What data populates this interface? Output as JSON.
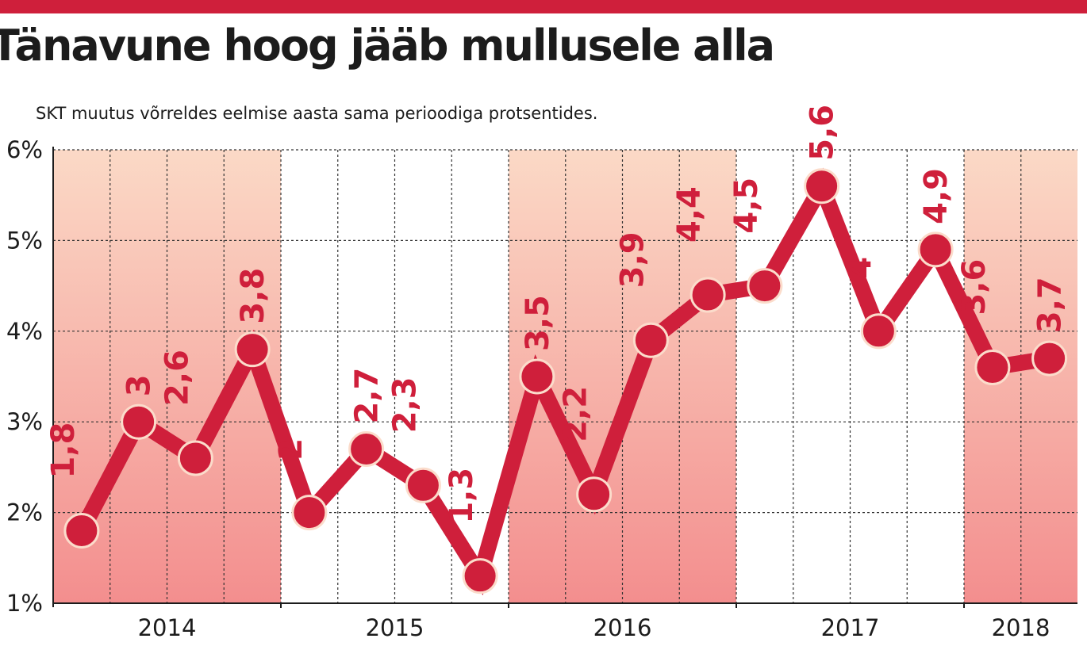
{
  "title": "Tänavune hoog jääb mullusele alla",
  "subtitle": "SKT muutus võrreldes eelmise aasta sama perioodiga protsentides.",
  "colors": {
    "accent": "#cf1f3b",
    "band_top": "#fbd9c6",
    "band_bottom": "#f38e8e",
    "marker_stroke": "#fbdccb",
    "grid": "#333333"
  },
  "chart_data": {
    "type": "line",
    "title": "Tänavune hoog jääb mullusele alla",
    "subtitle": "SKT muutus võrreldes eelmise aasta sama perioodiga protsentides.",
    "xlabel": "",
    "ylabel": "",
    "ylim": [
      1,
      6
    ],
    "y_ticks": [
      "1%",
      "2%",
      "3%",
      "4%",
      "5%",
      "6%"
    ],
    "years": [
      "2014",
      "2015",
      "2016",
      "2017",
      "2018"
    ],
    "quarters_per_year": 4,
    "shaded_years": [
      "2014",
      "2016",
      "2018"
    ],
    "grid": true,
    "series": [
      {
        "values": [
          1.8,
          3,
          2.6,
          3.8,
          2,
          2.7,
          2.3,
          1.3,
          3.5,
          2.2,
          3.9,
          4.4,
          4.5,
          5.6,
          4,
          4.9,
          3.6,
          3.7
        ],
        "labels": [
          "1,8",
          "3",
          "2,6",
          "3,8",
          "2",
          "2,7",
          "2,3",
          "1,3",
          "3,5",
          "2,2",
          "3,9",
          "4,4",
          "4,5",
          "5,6",
          "4",
          "4,9",
          "3,6",
          "3,7"
        ]
      }
    ]
  }
}
